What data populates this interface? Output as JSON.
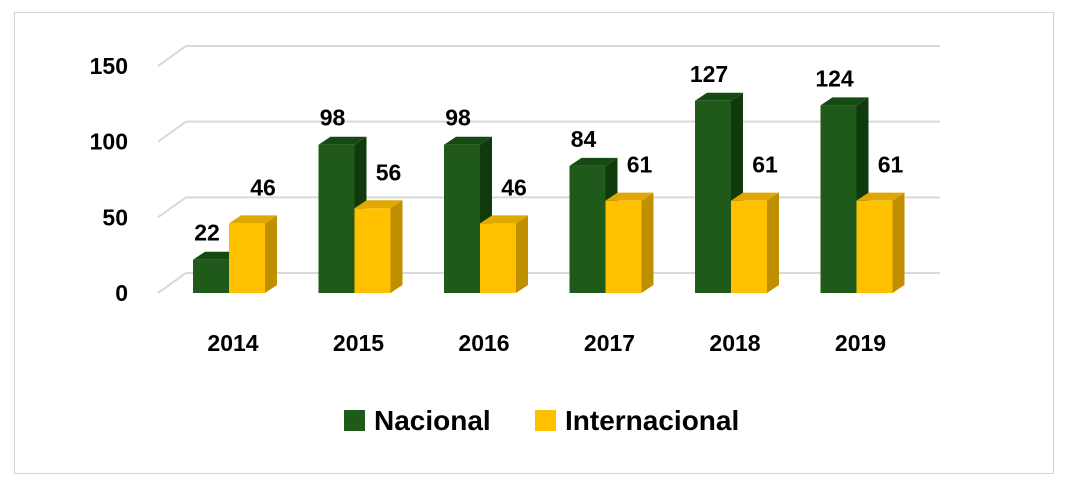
{
  "chart_data": {
    "type": "bar",
    "title": "",
    "xlabel": "",
    "ylabel": "",
    "categories": [
      "2014",
      "2015",
      "2016",
      "2017",
      "2018",
      "2019"
    ],
    "series": [
      {
        "name": "Nacional",
        "values": [
          22,
          98,
          98,
          84,
          127,
          124
        ]
      },
      {
        "name": "Internacional",
        "values": [
          46,
          56,
          46,
          61,
          61,
          61
        ]
      }
    ],
    "ylim": [
      0,
      150
    ],
    "yticks": [
      "0",
      "50",
      "100",
      "150"
    ],
    "grid": true,
    "legend_position": "bottom",
    "three_d": true,
    "colors": {
      "Nacional": {
        "front": "#1f5a1a",
        "side": "#0f3a0c",
        "top": "#164a13"
      },
      "Internacional": {
        "front": "#ffc000",
        "side": "#c08f00",
        "top": "#e0a800"
      },
      "grid": "#d9d9d9"
    }
  }
}
